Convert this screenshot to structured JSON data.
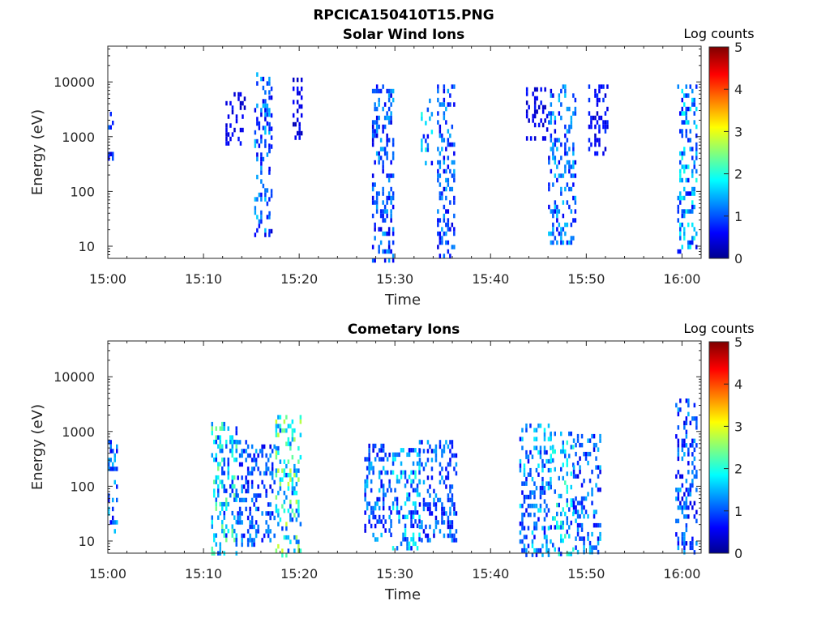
{
  "figure_title": "RPCICA150410T15.PNG",
  "colors": {
    "colormap": "jet",
    "colormap_stops": [
      "#00008f",
      "#0000ff",
      "#00ffff",
      "#ffff00",
      "#ff0000",
      "#800000"
    ],
    "axis": "#262626",
    "background": "#ffffff"
  },
  "chart_data": [
    {
      "type": "heatmap",
      "title": "Solar Wind Ions",
      "xlabel": "Time",
      "ylabel": "Energy (eV)",
      "x_ticks": [
        "15:00",
        "15:10",
        "15:20",
        "15:30",
        "15:40",
        "15:50",
        "16:00"
      ],
      "x_range_minutes": [
        0,
        62
      ],
      "y_scale": "log",
      "y_ticks": [
        10,
        100,
        1000,
        10000
      ],
      "ylim": [
        6,
        45000
      ],
      "colorbar": {
        "title": "Log counts",
        "ticks": [
          0,
          1,
          2,
          3,
          4,
          5
        ],
        "range": [
          0,
          5
        ]
      },
      "bursts": [
        {
          "t_start": 0.0,
          "t_end": 0.5,
          "e_min": 400,
          "e_max": 5000,
          "level": 1.0
        },
        {
          "t_start": 12.3,
          "t_end": 14.4,
          "e_min": 700,
          "e_max": 6500,
          "level": 0.6
        },
        {
          "t_start": 15.3,
          "t_end": 16.8,
          "e_min": 15,
          "e_max": 15000,
          "level": 1.3
        },
        {
          "t_start": 16.8,
          "t_end": 17.2,
          "e_min": 20,
          "e_max": 12000,
          "level": 0.8
        },
        {
          "t_start": 19.3,
          "t_end": 20.2,
          "e_min": 1000,
          "e_max": 12000,
          "level": 0.6
        },
        {
          "t_start": 27.6,
          "t_end": 29.8,
          "e_min": 6,
          "e_max": 9000,
          "level": 1.2
        },
        {
          "t_start": 32.7,
          "t_end": 33.9,
          "e_min": 300,
          "e_max": 6000,
          "level": 1.6
        },
        {
          "t_start": 34.4,
          "t_end": 36.3,
          "e_min": 7,
          "e_max": 9000,
          "level": 1.2
        },
        {
          "t_start": 43.7,
          "t_end": 46.0,
          "e_min": 1000,
          "e_max": 8000,
          "level": 0.6
        },
        {
          "t_start": 46.0,
          "t_end": 48.8,
          "e_min": 12,
          "e_max": 9000,
          "level": 1.3
        },
        {
          "t_start": 50.2,
          "t_end": 52.3,
          "e_min": 500,
          "e_max": 9000,
          "level": 0.7
        },
        {
          "t_start": 59.5,
          "t_end": 61.5,
          "e_min": 8,
          "e_max": 9000,
          "level": 1.6
        }
      ]
    },
    {
      "type": "heatmap",
      "title": "Cometary Ions",
      "xlabel": "Time",
      "ylabel": "Energy (eV)",
      "x_ticks": [
        "15:00",
        "15:10",
        "15:20",
        "15:30",
        "15:40",
        "15:50",
        "16:00"
      ],
      "x_range_minutes": [
        0,
        62
      ],
      "y_scale": "log",
      "y_ticks": [
        10,
        100,
        1000,
        10000
      ],
      "ylim": [
        6,
        45000
      ],
      "colorbar": {
        "title": "Log counts",
        "ticks": [
          0,
          1,
          2,
          3,
          4,
          5
        ],
        "range": [
          0,
          5
        ]
      },
      "bursts": [
        {
          "t_start": 0.0,
          "t_end": 1.0,
          "e_min": 15,
          "e_max": 700,
          "level": 1.3
        },
        {
          "t_start": 10.8,
          "t_end": 13.5,
          "e_min": 6,
          "e_max": 1500,
          "level": 2.0
        },
        {
          "t_start": 13.5,
          "t_end": 17.5,
          "e_min": 8,
          "e_max": 700,
          "level": 1.2
        },
        {
          "t_start": 17.5,
          "t_end": 20.2,
          "e_min": 6,
          "e_max": 2000,
          "level": 2.3
        },
        {
          "t_start": 26.8,
          "t_end": 29.5,
          "e_min": 10,
          "e_max": 600,
          "level": 1.3
        },
        {
          "t_start": 29.5,
          "t_end": 32.5,
          "e_min": 8,
          "e_max": 500,
          "level": 1.6
        },
        {
          "t_start": 32.5,
          "t_end": 36.5,
          "e_min": 10,
          "e_max": 700,
          "level": 1.2
        },
        {
          "t_start": 43.0,
          "t_end": 46.2,
          "e_min": 6,
          "e_max": 1400,
          "level": 1.5
        },
        {
          "t_start": 46.2,
          "t_end": 48.6,
          "e_min": 6,
          "e_max": 1000,
          "level": 1.8
        },
        {
          "t_start": 48.6,
          "t_end": 51.5,
          "e_min": 6,
          "e_max": 900,
          "level": 1.3
        },
        {
          "t_start": 59.3,
          "t_end": 61.5,
          "e_min": 6,
          "e_max": 4000,
          "level": 1.2
        }
      ]
    }
  ]
}
